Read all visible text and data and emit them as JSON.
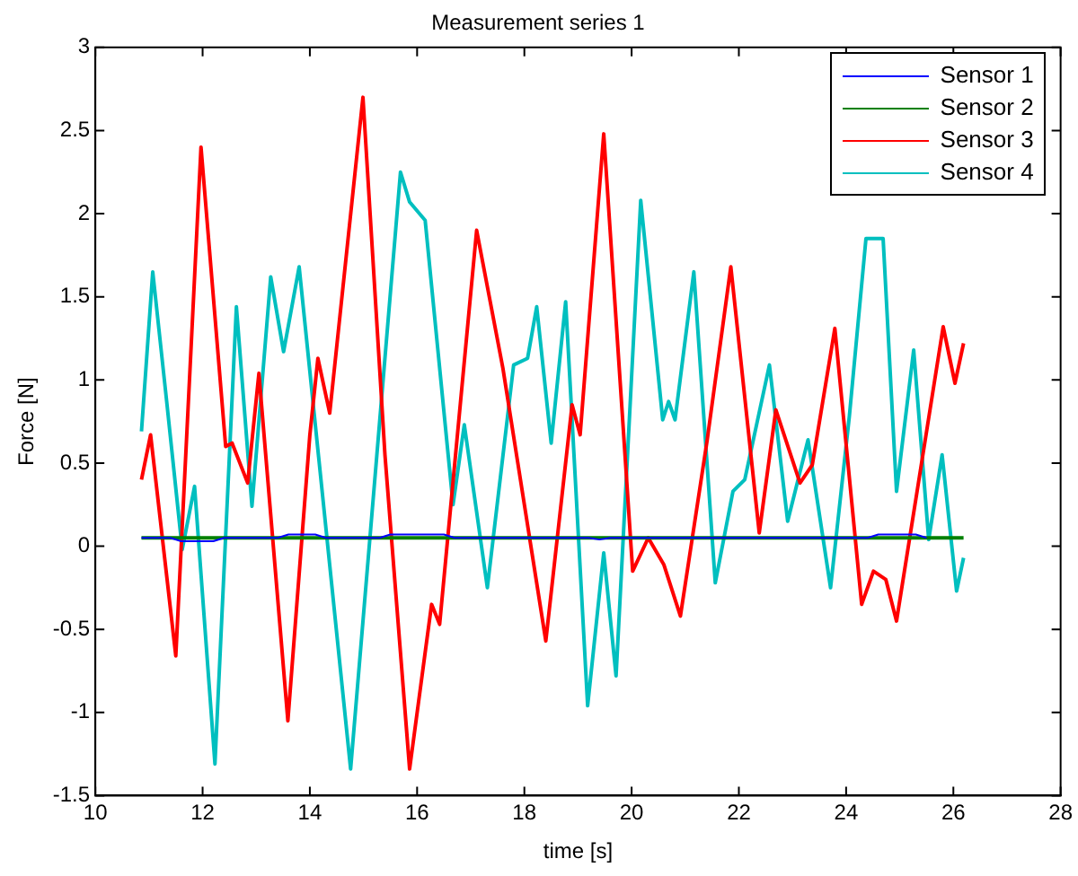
{
  "chart_data": {
    "type": "line",
    "title": "Measurement series 1",
    "xlabel": "time [s]",
    "ylabel": "Force [N]",
    "xlim": [
      10,
      28
    ],
    "xticks": [
      10,
      12,
      14,
      16,
      18,
      20,
      22,
      24,
      26,
      28
    ],
    "ylim": [
      -1.5,
      3
    ],
    "yticks": [
      -1.5,
      -1,
      -0.5,
      0,
      0.5,
      1,
      1.5,
      2,
      2.5,
      3
    ],
    "grid": false,
    "legend": "top right",
    "marker": "none",
    "line_style": "solid",
    "series": [
      {
        "name": "Sensor 1",
        "color": "#0000ff",
        "x": [
          10.86,
          11.4,
          11.6,
          12.2,
          12.4,
          13.4,
          13.6,
          14.1,
          14.3,
          15.3,
          15.5,
          16.5,
          16.7,
          19.2,
          19.4,
          19.6,
          24.4,
          24.6,
          25.3,
          25.5
        ],
        "values": [
          0.05,
          0.05,
          0.03,
          0.03,
          0.05,
          0.05,
          0.07,
          0.07,
          0.05,
          0.05,
          0.07,
          0.07,
          0.05,
          0.05,
          0.04,
          0.05,
          0.05,
          0.07,
          0.07,
          0.05
        ]
      },
      {
        "name": "Sensor 2",
        "color": "#008000",
        "x": [
          10.86,
          26.19
        ],
        "values": [
          0.05,
          0.05
        ]
      },
      {
        "name": "Sensor 3",
        "color": "#ff0000",
        "x": [
          10.86,
          11.03,
          11.5,
          11.97,
          12.43,
          12.55,
          12.84,
          13.05,
          13.59,
          14.0,
          14.15,
          14.37,
          14.99,
          15.4,
          15.86,
          16.27,
          16.42,
          17.11,
          17.6,
          18.4,
          18.89,
          19.04,
          19.48,
          20.02,
          20.31,
          20.6,
          20.91,
          21.41,
          21.85,
          22.38,
          22.69,
          23.14,
          23.37,
          23.79,
          24.29,
          24.51,
          24.74,
          24.94,
          25.81,
          26.03,
          26.19
        ],
        "values": [
          0.4,
          0.67,
          -0.66,
          2.4,
          0.6,
          0.62,
          0.38,
          1.04,
          -1.05,
          0.67,
          1.13,
          0.8,
          2.7,
          0.55,
          -1.34,
          -0.35,
          -0.47,
          1.9,
          1.07,
          -0.57,
          0.85,
          0.67,
          2.48,
          -0.15,
          0.05,
          -0.11,
          -0.42,
          0.64,
          1.68,
          0.08,
          0.82,
          0.38,
          0.49,
          1.31,
          -0.35,
          -0.15,
          -0.2,
          -0.45,
          1.32,
          0.98,
          1.22
        ]
      },
      {
        "name": "Sensor 4",
        "color": "#00bfbf",
        "x": [
          10.86,
          11.07,
          11.33,
          11.62,
          11.85,
          12.23,
          12.63,
          12.92,
          13.27,
          13.51,
          13.8,
          14.76,
          15.69,
          15.86,
          16.15,
          16.67,
          16.88,
          17.31,
          17.8,
          18.06,
          18.23,
          18.5,
          18.77,
          19.18,
          19.48,
          19.71,
          20.17,
          20.58,
          20.69,
          20.81,
          21.16,
          21.56,
          21.89,
          22.11,
          22.57,
          22.91,
          23.29,
          23.71,
          24.06,
          24.37,
          24.69,
          24.94,
          25.26,
          25.54,
          25.79,
          26.06,
          26.19
        ],
        "values": [
          0.69,
          1.65,
          0.87,
          -0.02,
          0.36,
          -1.31,
          1.44,
          0.24,
          1.62,
          1.17,
          1.68,
          -1.34,
          2.25,
          2.07,
          1.96,
          0.25,
          0.73,
          -0.25,
          1.09,
          1.13,
          1.44,
          0.62,
          1.47,
          -0.96,
          -0.04,
          -0.78,
          2.08,
          0.76,
          0.87,
          0.76,
          1.65,
          -0.22,
          0.33,
          0.4,
          1.09,
          0.15,
          0.64,
          -0.25,
          0.78,
          1.85,
          1.85,
          0.33,
          1.18,
          0.04,
          0.55,
          -0.27,
          -0.07
        ]
      }
    ]
  }
}
